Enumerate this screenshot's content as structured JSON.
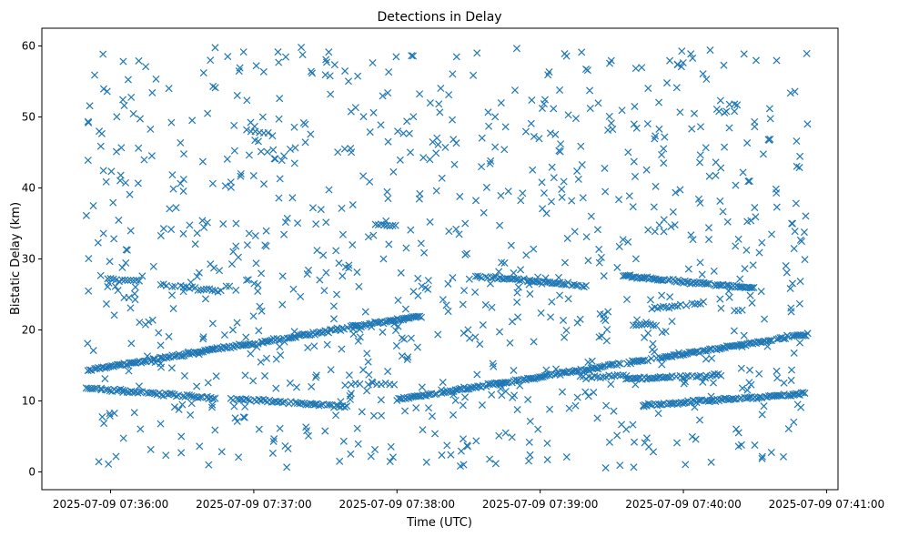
{
  "chart_data": {
    "type": "scatter",
    "title": "Detections in Delay",
    "xlabel": "Time (UTC)",
    "ylabel": "Bistatic Delay (km)",
    "marker": "x",
    "color": "#1f77b4",
    "x_unit": "minutes after 2025-07-09 07:36:00 UTC",
    "xlim": [
      -0.48,
      5.08
    ],
    "ylim": [
      -2.5,
      62.5
    ],
    "x_ticks": [
      {
        "value": 0,
        "label": "2025-07-09 07:36:00"
      },
      {
        "value": 1,
        "label": "2025-07-09 07:37:00"
      },
      {
        "value": 2,
        "label": "2025-07-09 07:38:00"
      },
      {
        "value": 3,
        "label": "2025-07-09 07:39:00"
      },
      {
        "value": 4,
        "label": "2025-07-09 07:40:00"
      },
      {
        "value": 5,
        "label": "2025-07-09 07:41:00"
      }
    ],
    "y_ticks": [
      {
        "value": 0,
        "label": "0"
      },
      {
        "value": 10,
        "label": "10"
      },
      {
        "value": 20,
        "label": "20"
      },
      {
        "value": 30,
        "label": "30"
      },
      {
        "value": 40,
        "label": "40"
      },
      {
        "value": 50,
        "label": "50"
      },
      {
        "value": 60,
        "label": "60"
      }
    ],
    "time_range": [
      -0.17,
      4.87
    ],
    "tracks": [
      {
        "name": "track-a",
        "t_start": -0.17,
        "t_end": 2.18,
        "delay_start": 14.3,
        "delay_end": 22.0,
        "spacing": 0.012
      },
      {
        "name": "track-b",
        "t_start": -0.17,
        "t_end": 0.74,
        "delay_start": 11.8,
        "delay_end": 10.4,
        "spacing": 0.015
      },
      {
        "name": "track-c",
        "t_start": 0.84,
        "t_end": 1.65,
        "delay_start": 10.3,
        "delay_end": 9.2,
        "spacing": 0.015
      },
      {
        "name": "track-d",
        "t_start": 1.65,
        "t_end": 2.0,
        "delay_start": 12.4,
        "delay_end": 12.4,
        "spacing": 0.03
      },
      {
        "name": "track-e",
        "t_start": 2.0,
        "t_end": 4.87,
        "delay_start": 10.2,
        "delay_end": 19.4,
        "spacing": 0.012
      },
      {
        "name": "track-f",
        "t_start": -0.02,
        "t_end": 0.2,
        "delay_start": 27.1,
        "delay_end": 26.9,
        "spacing": 0.02
      },
      {
        "name": "track-g",
        "t_start": 0.35,
        "t_end": 0.78,
        "delay_start": 26.4,
        "delay_end": 25.4,
        "spacing": 0.02
      },
      {
        "name": "track-h",
        "t_start": 0.95,
        "t_end": 1.15,
        "delay_start": 48.0,
        "delay_end": 47.4,
        "spacing": 0.03
      },
      {
        "name": "track-i",
        "t_start": 1.85,
        "t_end": 2.0,
        "delay_start": 34.9,
        "delay_end": 34.7,
        "spacing": 0.02
      },
      {
        "name": "track-j",
        "t_start": 2.55,
        "t_end": 3.33,
        "delay_start": 27.6,
        "delay_end": 26.2,
        "spacing": 0.014
      },
      {
        "name": "track-k",
        "t_start": 3.58,
        "t_end": 4.5,
        "delay_start": 27.6,
        "delay_end": 25.9,
        "spacing": 0.012
      },
      {
        "name": "track-l",
        "t_start": 3.78,
        "t_end": 4.15,
        "delay_start": 23.0,
        "delay_end": 23.8,
        "spacing": 0.02
      },
      {
        "name": "track-m",
        "t_start": 3.65,
        "t_end": 3.82,
        "delay_start": 20.7,
        "delay_end": 20.8,
        "spacing": 0.02
      },
      {
        "name": "track-n",
        "t_start": 3.28,
        "t_end": 3.58,
        "delay_start": 13.3,
        "delay_end": 13.6,
        "spacing": 0.02
      },
      {
        "name": "track-o",
        "t_start": 3.6,
        "t_end": 4.25,
        "delay_start": 13.1,
        "delay_end": 13.6,
        "spacing": 0.014
      },
      {
        "name": "track-p",
        "t_start": 3.72,
        "t_end": 4.85,
        "delay_start": 9.4,
        "delay_end": 11.0,
        "spacing": 0.012
      }
    ],
    "clutter": {
      "count": 920,
      "t_range": [
        -0.17,
        4.87
      ],
      "delay_range": [
        0.4,
        59.8
      ],
      "distribution": "uniform random background detections"
    }
  }
}
